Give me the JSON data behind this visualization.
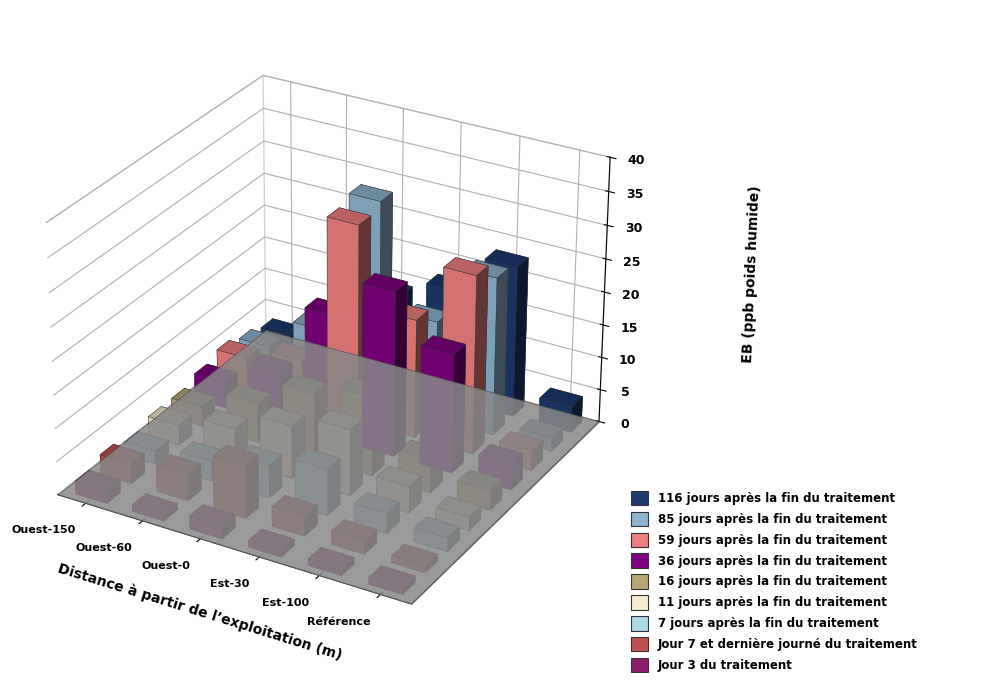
{
  "ylabel": "EB (ppb poids humide)",
  "xlabel": "Distance à partir de l’exploitation (m)",
  "locations": [
    "Ouest-150",
    "Ouest-60",
    "Ouest-0",
    "Est-30",
    "Est-100",
    "Référence"
  ],
  "time_labels": [
    "Jour 3 du traitement",
    "Jour 7 et dernière journé du traitement",
    "7 jours après la fin du traitement",
    "11 jours après la fin du traitement",
    "16 jours après la fin du traitement",
    "36 jours après la fin du traitement",
    "59 jours après la fin du traitement",
    "85 jours après la fin du traitement",
    "116 jours après la fin du traitement"
  ],
  "colors": [
    "#8B1A6B",
    "#C05050",
    "#ADD8E6",
    "#F5ECD0",
    "#B8A878",
    "#800080",
    "#F08080",
    "#8FB4D0",
    "#1C3A6E"
  ],
  "data": [
    [
      2,
      1,
      2,
      1,
      1,
      1
    ],
    [
      3,
      4,
      8,
      3,
      2,
      1
    ],
    [
      2,
      3,
      5,
      7,
      3,
      2
    ],
    [
      3,
      5,
      8,
      10,
      4,
      2
    ],
    [
      3,
      6,
      10,
      12,
      5,
      3
    ],
    [
      4,
      8,
      19,
      25,
      18,
      4
    ],
    [
      5,
      7,
      30,
      18,
      27,
      3
    ],
    [
      4,
      9,
      31,
      15,
      24,
      2
    ],
    [
      3,
      6,
      14,
      17,
      23,
      4
    ]
  ],
  "ylim": [
    0,
    40
  ],
  "yticks": [
    0,
    5,
    10,
    15,
    20,
    25,
    30,
    35,
    40
  ],
  "floor_color": "#888888",
  "wall_color": "#f0f0f0",
  "elev": 28,
  "azim": -60
}
